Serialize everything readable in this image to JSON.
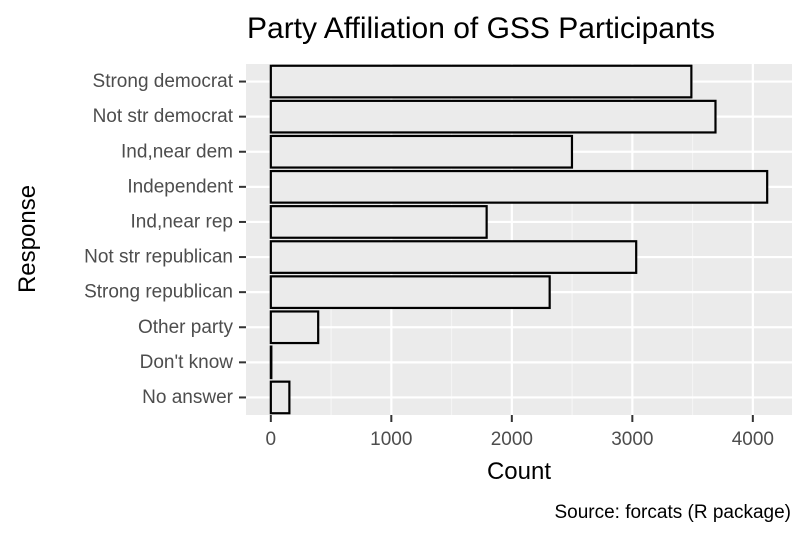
{
  "chart_data": {
    "type": "bar",
    "orientation": "horizontal",
    "title": "Party Affiliation of GSS Participants",
    "xlabel": "Count",
    "ylabel": "Response",
    "caption": "Source: forcats (R package)",
    "categories": [
      "Strong democrat",
      "Not str democrat",
      "Ind,near dem",
      "Independent",
      "Ind,near rep",
      "Not str republican",
      "Strong republican",
      "Other party",
      "Don't know",
      "No answer"
    ],
    "values": [
      3490,
      3690,
      2499,
      4119,
      1791,
      3032,
      2314,
      393,
      1,
      154
    ],
    "xticks": [
      0,
      1000,
      2000,
      3000,
      4000
    ],
    "xlim": [
      -206,
      4325
    ],
    "grid": true,
    "legend": "none",
    "colors": {
      "panel": "#ebebeb",
      "grid_major": "#ffffff",
      "grid_minor": "#f5f5f5",
      "bar_fill": "#ebebeb",
      "bar_outline": "#000000",
      "tick": "#333333",
      "tick_label": "#4d4d4d"
    }
  }
}
